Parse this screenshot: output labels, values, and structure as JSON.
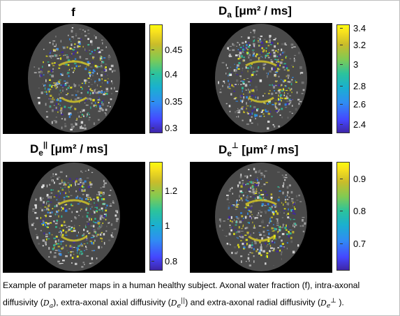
{
  "panels": [
    {
      "title_main": "f",
      "title_sub": "",
      "title_sup": "",
      "title_unit": "",
      "ticks": [
        "0.45",
        "0.4",
        "0.35",
        "0.3"
      ]
    },
    {
      "title_main": "D",
      "title_sub": "a",
      "title_sup": "",
      "title_unit": "[μm² / ms]",
      "ticks": [
        "3.4",
        "3.2",
        "3",
        "2.8",
        "2.6",
        "2.4"
      ]
    },
    {
      "title_main": "D",
      "title_sub": "e",
      "title_sup": "||",
      "title_unit": "[μm² / ms]",
      "ticks": [
        "1.2",
        "1",
        "0.8"
      ]
    },
    {
      "title_main": "D",
      "title_sub": "e",
      "title_sup": "⊥",
      "title_unit": "[μm² / ms]",
      "ticks": [
        "0.9",
        "0.8",
        "0.7"
      ]
    }
  ],
  "caption": {
    "line1": "Example of parameter maps in a human healthy subject. Axonal water fraction (f), intra-axonal",
    "line2_a": "diffusivity (",
    "sym_a": "D",
    "sym_a_sub": "a",
    "line2_b": "), extra-axonal axial diffusivity (",
    "sym_b": "D",
    "sym_b_sub": "e",
    "sym_b_sup": "||",
    "line2_c": ") and extra-axonal radial diffusivity (",
    "sym_c": "D",
    "sym_c_sub": "e",
    "sym_c_sup": "⊥",
    "line2_d": " )."
  },
  "colormap": [
    "#3e26a8",
    "#2f8ef2",
    "#2cc39c",
    "#c9bc2a",
    "#f9fb0e"
  ]
}
